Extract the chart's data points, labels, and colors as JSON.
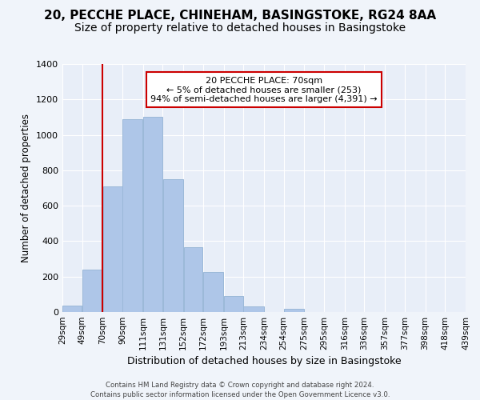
{
  "title1": "20, PECCHE PLACE, CHINEHAM, BASINGSTOKE, RG24 8AA",
  "title2": "Size of property relative to detached houses in Basingstoke",
  "xlabel": "Distribution of detached houses by size in Basingstoke",
  "ylabel": "Number of detached properties",
  "bar_edges": [
    29,
    49,
    70,
    90,
    111,
    131,
    152,
    172,
    193,
    213,
    234,
    254,
    275,
    295,
    316,
    336,
    357,
    377,
    398,
    418,
    439
  ],
  "bar_heights": [
    35,
    240,
    710,
    1090,
    1100,
    750,
    365,
    225,
    90,
    30,
    0,
    20,
    0,
    0,
    0,
    0,
    0,
    0,
    0,
    0
  ],
  "bar_color": "#aec6e8",
  "bar_edge_color": "#9bb8d8",
  "vline_x": 70,
  "vline_color": "#cc0000",
  "annotation_box_text": "20 PECCHE PLACE: 70sqm\n← 5% of detached houses are smaller (253)\n94% of semi-detached houses are larger (4,391) →",
  "annotation_box_color": "#ffffff",
  "annotation_box_edge_color": "#cc0000",
  "ylim": [
    0,
    1400
  ],
  "yticks": [
    0,
    200,
    400,
    600,
    800,
    1000,
    1200,
    1400
  ],
  "tick_labels": [
    "29sqm",
    "49sqm",
    "70sqm",
    "90sqm",
    "111sqm",
    "131sqm",
    "152sqm",
    "172sqm",
    "193sqm",
    "213sqm",
    "234sqm",
    "254sqm",
    "275sqm",
    "295sqm",
    "316sqm",
    "336sqm",
    "357sqm",
    "377sqm",
    "398sqm",
    "418sqm",
    "439sqm"
  ],
  "footer_text": "Contains HM Land Registry data © Crown copyright and database right 2024.\nContains public sector information licensed under the Open Government Licence v3.0.",
  "bg_color": "#f0f4fa",
  "plot_bg_color": "#e8eef8",
  "grid_color": "#ffffff",
  "title_fontsize": 11,
  "subtitle_fontsize": 10
}
